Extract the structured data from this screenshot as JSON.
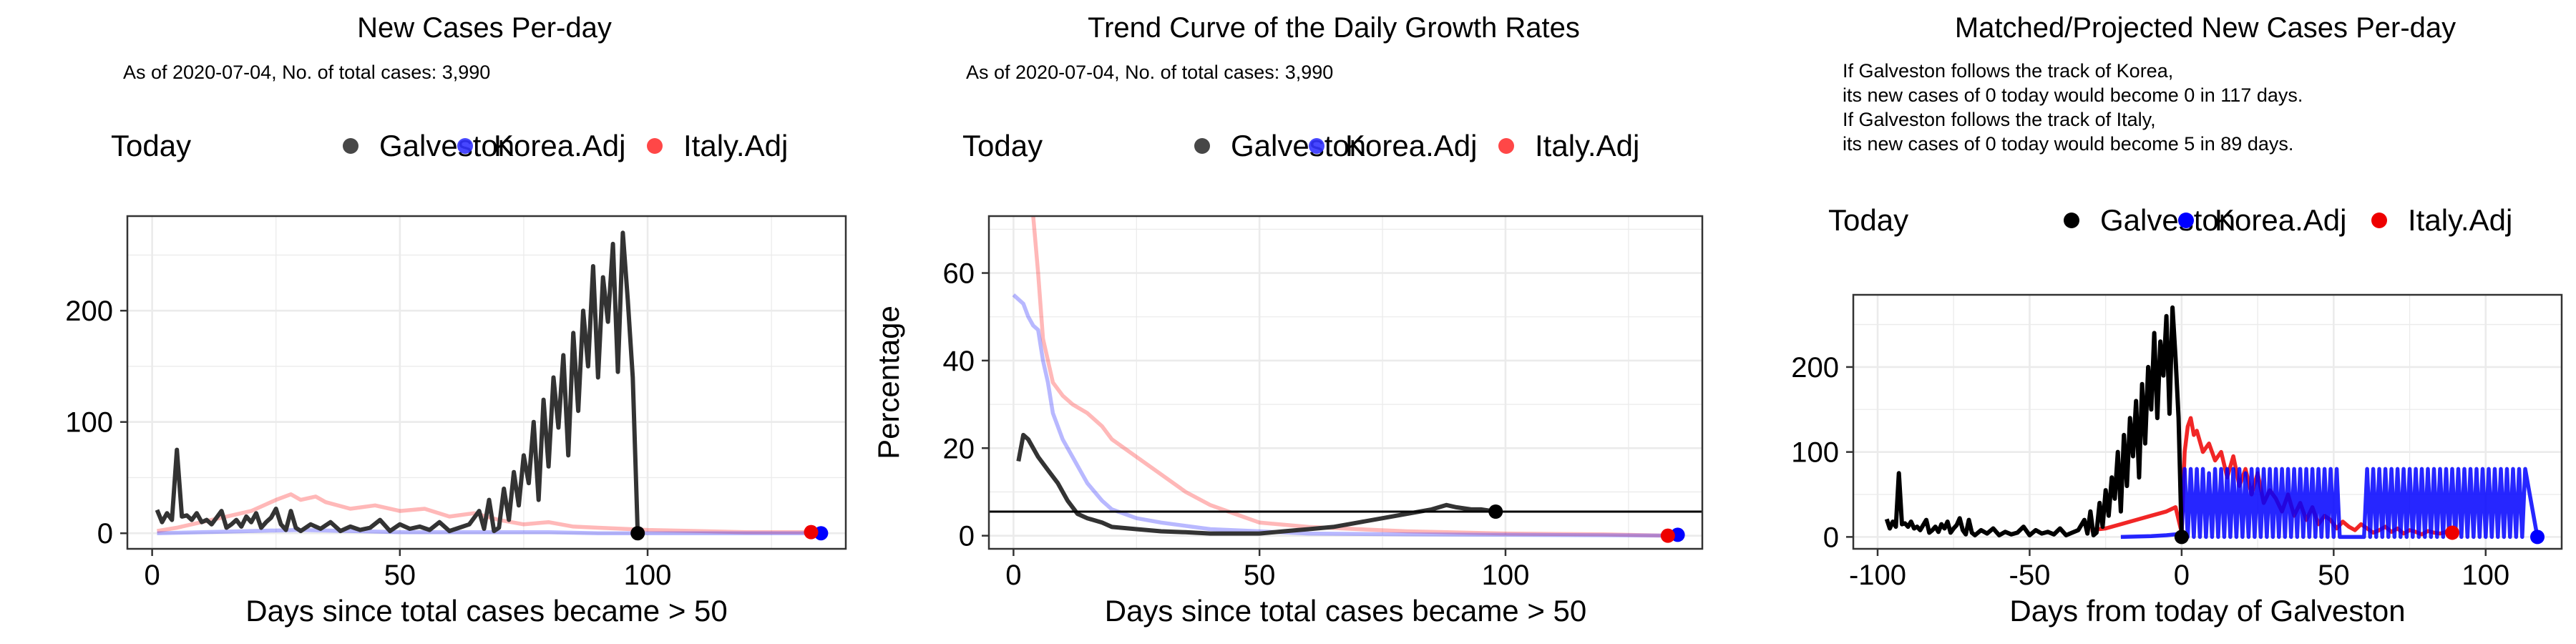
{
  "colors": {
    "galveston": "#333333",
    "korea": "#3333ff",
    "italy": "#ff3333",
    "today_black": "#000000",
    "korea_bright": "#0000ff",
    "italy_bright": "#ee0000",
    "grid": "#ebebeb",
    "panel_border": "#333333"
  },
  "chart_data": [
    {
      "type": "line",
      "title": "New Cases Per-day",
      "subtitle": "As of 2020-07-04, No. of total cases: 3,990",
      "xlabel": "Days since total cases became > 50",
      "ylabel": "",
      "xlim": [
        -5,
        140
      ],
      "ylim": [
        -14,
        285
      ],
      "x_ticks": [
        0,
        50,
        100
      ],
      "y_ticks": [
        0,
        100,
        200
      ],
      "grid": true,
      "legend_position": "top",
      "legend": [
        {
          "label": "Today"
        },
        {
          "label": "Galveston"
        },
        {
          "label": "Korea.Adj"
        },
        {
          "label": "Italy.Adj"
        }
      ],
      "series": [
        {
          "name": "Galveston",
          "x": [
            1,
            2,
            3,
            4,
            5,
            6,
            7,
            8,
            9,
            10,
            11,
            12,
            13,
            14,
            15,
            16,
            17,
            18,
            19,
            20,
            21,
            22,
            23,
            24,
            25,
            26,
            27,
            28,
            29,
            30,
            32,
            34,
            36,
            38,
            40,
            42,
            44,
            46,
            48,
            50,
            52,
            54,
            56,
            58,
            60,
            62,
            64,
            66,
            67,
            68,
            69,
            70,
            71,
            72,
            73,
            74,
            75,
            76,
            77,
            78,
            79,
            80,
            81,
            82,
            83,
            84,
            85,
            86,
            87,
            88,
            89,
            90,
            91,
            92,
            93,
            94,
            95,
            96,
            97,
            98
          ],
          "y": [
            21,
            10,
            18,
            12,
            75,
            15,
            16,
            12,
            18,
            10,
            12,
            8,
            14,
            20,
            5,
            8,
            12,
            6,
            15,
            10,
            18,
            5,
            10,
            14,
            22,
            8,
            3,
            20,
            5,
            2,
            8,
            4,
            10,
            2,
            6,
            3,
            5,
            12,
            2,
            8,
            4,
            6,
            3,
            10,
            2,
            5,
            8,
            20,
            4,
            30,
            2,
            5,
            40,
            12,
            55,
            25,
            70,
            45,
            100,
            30,
            120,
            60,
            140,
            95,
            160,
            70,
            180,
            110,
            200,
            150,
            240,
            140,
            230,
            190,
            260,
            145,
            270,
            210,
            140,
            0
          ]
        },
        {
          "name": "Korea.Adj",
          "x": [
            1,
            10,
            20,
            30,
            40,
            50,
            60,
            70,
            80,
            90,
            100,
            110,
            120,
            130,
            135
          ],
          "y": [
            0,
            1,
            2,
            3,
            2,
            1,
            1,
            1,
            1,
            0,
            0,
            0,
            0,
            0,
            0
          ]
        },
        {
          "name": "Italy.Adj",
          "x": [
            1,
            5,
            10,
            15,
            20,
            25,
            28,
            30,
            33,
            35,
            40,
            45,
            50,
            55,
            60,
            65,
            70,
            75,
            80,
            85,
            90,
            95,
            100,
            110,
            120,
            133
          ],
          "y": [
            2,
            5,
            10,
            15,
            20,
            30,
            35,
            30,
            33,
            28,
            22,
            25,
            20,
            22,
            15,
            18,
            12,
            8,
            10,
            6,
            5,
            4,
            3,
            2,
            1,
            1
          ]
        }
      ],
      "today_points": [
        {
          "series": "Galveston",
          "x": 98,
          "y": 0
        },
        {
          "series": "Korea.Adj",
          "x": 135,
          "y": 0
        },
        {
          "series": "Italy.Adj",
          "x": 133,
          "y": 1
        }
      ]
    },
    {
      "type": "line",
      "title": "Trend Curve of the Daily Growth Rates",
      "subtitle": "As of 2020-07-04, No. of total cases: 3,990",
      "xlabel": "Days since total cases became > 50",
      "ylabel": "Percentage",
      "xlim": [
        -5,
        140
      ],
      "ylim": [
        -3,
        73
      ],
      "x_ticks": [
        0,
        50,
        100
      ],
      "y_ticks": [
        0,
        20,
        40,
        60
      ],
      "grid": true,
      "legend_position": "top",
      "reference_line_y": 5.5,
      "legend": [
        {
          "label": "Today"
        },
        {
          "label": "Galveston"
        },
        {
          "label": "Korea.Adj"
        },
        {
          "label": "Italy.Adj"
        }
      ],
      "series": [
        {
          "name": "Galveston",
          "x": [
            1,
            2,
            3,
            5,
            7,
            9,
            11,
            13,
            15,
            18,
            20,
            25,
            30,
            35,
            40,
            45,
            50,
            55,
            60,
            65,
            70,
            75,
            80,
            85,
            88,
            90,
            93,
            95,
            98
          ],
          "y": [
            17,
            23,
            22,
            18,
            15,
            12,
            8,
            5,
            4,
            3,
            2,
            1.5,
            1,
            0.8,
            0.5,
            0.5,
            0.5,
            1,
            1.5,
            2,
            3,
            4,
            5,
            6,
            7,
            6.5,
            6,
            6,
            5.5
          ]
        },
        {
          "name": "Korea.Adj",
          "x": [
            0,
            1,
            2,
            3,
            4,
            5,
            6,
            7,
            8,
            10,
            12,
            15,
            18,
            20,
            25,
            30,
            40,
            50,
            60,
            80,
            100,
            120,
            135
          ],
          "y": [
            55,
            54,
            53,
            50,
            48,
            47,
            40,
            35,
            28,
            22,
            18,
            12,
            8,
            6,
            4,
            3,
            1.5,
            1,
            0.5,
            0.3,
            0.2,
            0.1,
            0
          ]
        },
        {
          "name": "Italy.Adj",
          "x": [
            4,
            5,
            6,
            7,
            8,
            10,
            12,
            15,
            18,
            20,
            25,
            30,
            35,
            40,
            45,
            50,
            60,
            70,
            80,
            100,
            120,
            133
          ],
          "y": [
            73,
            60,
            45,
            40,
            35,
            32,
            30,
            28,
            25,
            22,
            18,
            14,
            10,
            7,
            5,
            3,
            2,
            1.5,
            1,
            0.5,
            0.3,
            0
          ]
        }
      ],
      "today_points": [
        {
          "series": "Galveston",
          "x": 98,
          "y": 5.5
        },
        {
          "series": "Korea.Adj",
          "x": 135,
          "y": 0.2
        },
        {
          "series": "Italy.Adj",
          "x": 133,
          "y": 0
        }
      ]
    },
    {
      "type": "line",
      "title": "Matched/Projected New Cases Per-day",
      "annotation_lines": [
        "If Galveston follows the track of Korea,",
        "its new cases of 0 today would become 0 in 117 days.",
        "If Galveston follows the track of Italy,",
        "its new cases of 0 today would become 5 in 89 days."
      ],
      "xlabel": "Days from today of Galveston",
      "ylabel": "",
      "xlim": [
        -108,
        125
      ],
      "ylim": [
        -14,
        285
      ],
      "x_ticks": [
        -100,
        -50,
        0,
        50,
        100
      ],
      "y_ticks": [
        0,
        100,
        200
      ],
      "grid": true,
      "legend_position": "top",
      "legend": [
        {
          "label": "Today"
        },
        {
          "label": "Galveston"
        },
        {
          "label": "Korea.Adj"
        },
        {
          "label": "Italy.Adj"
        }
      ],
      "series": [
        {
          "name": "Galveston",
          "x": [
            -97,
            -96,
            -95,
            -94,
            -93,
            -92,
            -91,
            -90,
            -89,
            -88,
            -87,
            -86,
            -85,
            -84,
            -83,
            -82,
            -81,
            -80,
            -79,
            -78,
            -77,
            -76,
            -75,
            -74,
            -73,
            -72,
            -71,
            -70,
            -69,
            -68,
            -66,
            -64,
            -62,
            -60,
            -58,
            -56,
            -54,
            -52,
            -50,
            -48,
            -46,
            -44,
            -42,
            -40,
            -38,
            -36,
            -34,
            -32,
            -31,
            -30,
            -29,
            -28,
            -27,
            -26,
            -25,
            -24,
            -23,
            -22,
            -21,
            -20,
            -19,
            -18,
            -17,
            -16,
            -15,
            -14,
            -13,
            -12,
            -11,
            -10,
            -9,
            -8,
            -7,
            -6,
            -5,
            -4,
            -3,
            -2,
            -1,
            0
          ],
          "y": [
            21,
            10,
            18,
            12,
            75,
            15,
            16,
            12,
            18,
            10,
            12,
            8,
            14,
            20,
            5,
            8,
            12,
            6,
            15,
            10,
            18,
            5,
            10,
            14,
            22,
            8,
            3,
            20,
            5,
            2,
            8,
            4,
            10,
            2,
            6,
            3,
            5,
            12,
            2,
            8,
            4,
            6,
            3,
            10,
            2,
            5,
            8,
            20,
            4,
            30,
            2,
            5,
            40,
            12,
            55,
            25,
            70,
            45,
            100,
            30,
            120,
            60,
            140,
            95,
            160,
            70,
            180,
            110,
            200,
            150,
            240,
            140,
            230,
            190,
            260,
            145,
            270,
            210,
            140,
            0
          ]
        },
        {
          "name": "Korea.Adj",
          "x": [
            -20,
            -10,
            -5,
            -2,
            0,
            1,
            2,
            3,
            4,
            5,
            6,
            7,
            8,
            9,
            10,
            11,
            12,
            13,
            14,
            15,
            16,
            17,
            18,
            19,
            20,
            21,
            22,
            23,
            24,
            25,
            26,
            27,
            28,
            29,
            30,
            31,
            32,
            33,
            34,
            35,
            36,
            37,
            38,
            39,
            40,
            41,
            42,
            43,
            44,
            45,
            46,
            47,
            48,
            49,
            50,
            51,
            52,
            53,
            54,
            55,
            56,
            57,
            58,
            59,
            60,
            61,
            62,
            63,
            64,
            65,
            66,
            67,
            68,
            69,
            70,
            71,
            72,
            73,
            74,
            75,
            76,
            77,
            78,
            79,
            80,
            81,
            82,
            83,
            84,
            85,
            86,
            87,
            88,
            89,
            90,
            91,
            92,
            93,
            94,
            95,
            96,
            97,
            98,
            99,
            100,
            101,
            102,
            103,
            104,
            105,
            106,
            107,
            108,
            109,
            110,
            111,
            112,
            113,
            117
          ],
          "y": [
            0,
            1,
            2,
            3,
            5,
            80,
            0,
            80,
            0,
            80,
            0,
            80,
            0,
            75,
            0,
            80,
            0,
            80,
            0,
            80,
            0,
            80,
            0,
            80,
            0,
            75,
            0,
            80,
            0,
            80,
            0,
            80,
            0,
            80,
            0,
            80,
            0,
            80,
            0,
            80,
            0,
            80,
            0,
            80,
            0,
            80,
            0,
            80,
            0,
            80,
            0,
            80,
            0,
            80,
            0,
            80,
            0,
            0,
            0,
            0,
            0,
            0,
            0,
            0,
            0,
            80,
            0,
            80,
            0,
            80,
            0,
            80,
            0,
            80,
            0,
            80,
            0,
            80,
            0,
            80,
            0,
            80,
            0,
            80,
            0,
            80,
            0,
            80,
            0,
            80,
            0,
            80,
            0,
            80,
            0,
            80,
            0,
            80,
            0,
            80,
            0,
            80,
            0,
            80,
            0,
            80,
            0,
            80,
            0,
            80,
            0,
            80,
            0,
            80,
            0,
            80,
            0,
            80,
            0
          ]
        },
        {
          "name": "Italy.Adj",
          "x": [
            -30,
            -25,
            -20,
            -15,
            -10,
            -5,
            -2,
            0,
            1,
            2,
            3,
            4,
            5,
            7,
            9,
            11,
            13,
            15,
            17,
            19,
            21,
            23,
            25,
            27,
            29,
            31,
            33,
            35,
            37,
            39,
            41,
            43,
            45,
            47,
            49,
            51,
            53,
            55,
            57,
            59,
            61,
            63,
            65,
            67,
            69,
            71,
            73,
            75,
            77,
            79,
            81,
            83,
            85,
            87,
            89
          ],
          "y": [
            8,
            10,
            15,
            20,
            25,
            30,
            35,
            5,
            100,
            130,
            140,
            120,
            125,
            100,
            110,
            90,
            100,
            70,
            95,
            60,
            80,
            50,
            75,
            40,
            55,
            45,
            30,
            50,
            25,
            40,
            20,
            35,
            15,
            25,
            20,
            10,
            18,
            12,
            8,
            15,
            10,
            5,
            8,
            12,
            6,
            10,
            4,
            8,
            6,
            3,
            7,
            5,
            4,
            6,
            5
          ]
        }
      ],
      "today_points": [
        {
          "series": "Galveston",
          "x": 0,
          "y": 0
        },
        {
          "series": "Korea.Adj",
          "x": 117,
          "y": 0
        },
        {
          "series": "Italy.Adj",
          "x": 89,
          "y": 5
        }
      ]
    }
  ]
}
